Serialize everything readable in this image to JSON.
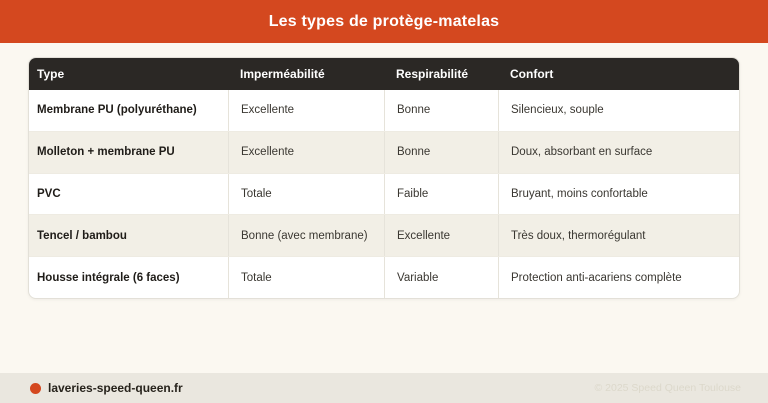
{
  "header": {
    "title": "Les types de protège-matelas",
    "background": "#D4481F",
    "text_color": "#FFFFFF"
  },
  "chart_data": {
    "type": "table",
    "title": "Les types de protège-matelas",
    "columns": [
      "Type",
      "Imperméabilité",
      "Respirabilité",
      "Confort"
    ],
    "rows": [
      [
        "Membrane PU (polyuréthane)",
        "Excellente",
        "Bonne",
        "Silencieux, souple"
      ],
      [
        "Molleton + membrane PU",
        "Excellente",
        "Bonne",
        "Doux, absorbant en surface"
      ],
      [
        "PVC",
        "Totale",
        "Faible",
        "Bruyant, moins confortable"
      ],
      [
        "Tencel / bambou",
        "Bonne (avec membrane)",
        "Excellente",
        "Très doux, thermorégulant"
      ],
      [
        "Housse intégrale (6 faces)",
        "Totale",
        "Variable",
        "Protection anti-acariens complète"
      ]
    ],
    "layout": {
      "header_background": "#2B2825",
      "alt_row_background": "#F2EFE6",
      "row_background": "#FFFFFF"
    }
  },
  "footer": {
    "site": "laveries-speed-queen.fr",
    "copyright": "© 2025 Speed Queen Toulouse",
    "dot_color": "#D4481F",
    "background": "#EAE7DF"
  }
}
